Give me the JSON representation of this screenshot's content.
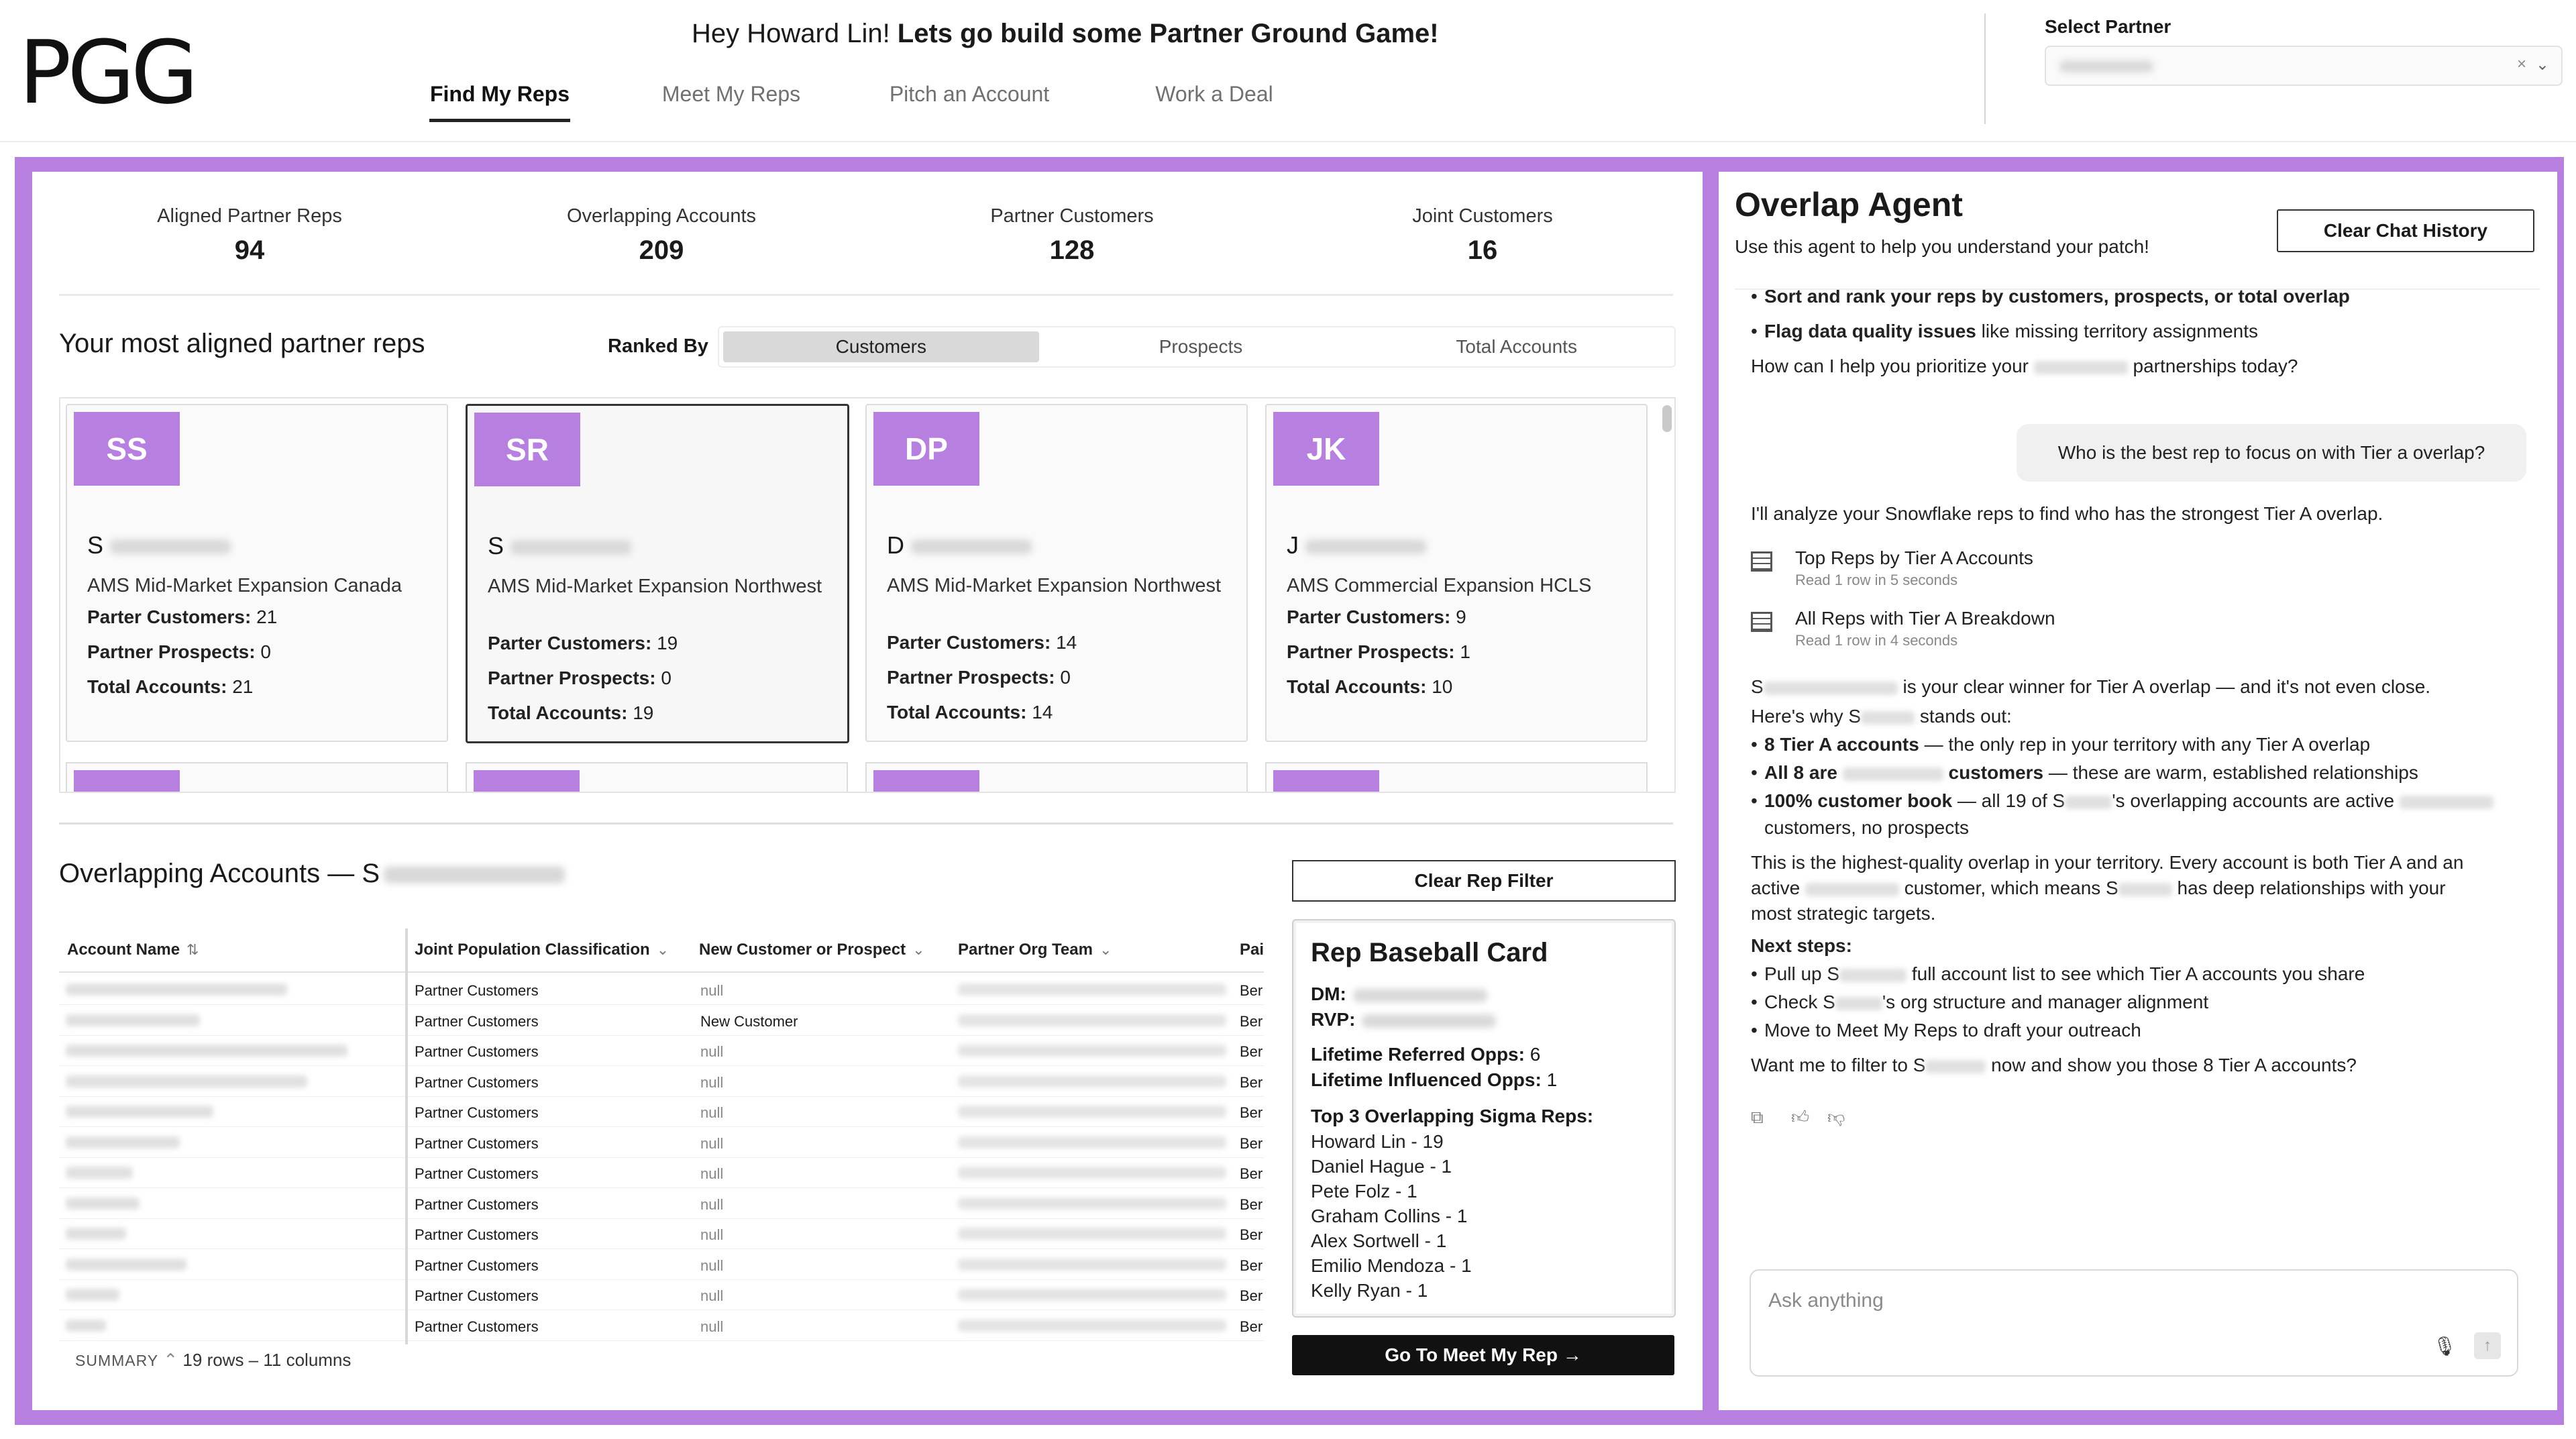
{
  "header": {
    "logo": "PGG",
    "greeting_prefix": "Hey Howard Lin! ",
    "greeting_bold": "Lets go build some Partner Ground Game!",
    "tabs": [
      {
        "label": "Find My Reps",
        "active": true
      },
      {
        "label": "Meet My Reps",
        "active": false
      },
      {
        "label": "Pitch an Account",
        "active": false
      },
      {
        "label": "Work a Deal",
        "active": false
      }
    ],
    "select_partner_label": "Select Partner",
    "clear_icon": "×",
    "chevron_icon": "⌄"
  },
  "stats": [
    {
      "label": "Aligned Partner Reps",
      "value": "94"
    },
    {
      "label": "Overlapping Accounts",
      "value": "209"
    },
    {
      "label": "Partner Customers",
      "value": "128"
    },
    {
      "label": "Joint Customers",
      "value": "16"
    }
  ],
  "reps_section": {
    "heading": "Your most aligned partner reps",
    "ranked_by_label": "Ranked By",
    "ranked_options": [
      "Customers",
      "Prospects",
      "Total Accounts"
    ],
    "active_option": "Customers"
  },
  "rep_cards": [
    {
      "initials": "SS",
      "name_initial": "S",
      "team": "AMS Mid-Market Expansion Canada",
      "customers_label": "Parter Customers:",
      "customers": "21",
      "prospects_label": "Partner Prospects:",
      "prospects": "0",
      "total_label": "Total Accounts:",
      "total": "21"
    },
    {
      "initials": "SR",
      "name_initial": "S",
      "team": "AMS Mid-Market Expansion Northwest",
      "customers_label": "Parter Customers:",
      "customers": "19",
      "prospects_label": "Partner Prospects:",
      "prospects": "0",
      "total_label": "Total Accounts:",
      "total": "19"
    },
    {
      "initials": "DP",
      "name_initial": "D",
      "team": "AMS Mid-Market Expansion Northwest",
      "customers_label": "Parter Customers:",
      "customers": "14",
      "prospects_label": "Partner Prospects:",
      "prospects": "0",
      "total_label": "Total Accounts:",
      "total": "14"
    },
    {
      "initials": "JK",
      "name_initial": "J",
      "team": "AMS Commercial Expansion HCLS",
      "customers_label": "Parter Customers:",
      "customers": "9",
      "prospects_label": "Partner Prospects:",
      "prospects": "1",
      "total_label": "Total Accounts:",
      "total": "10"
    }
  ],
  "overlap": {
    "title_prefix": "Overlapping Accounts — S",
    "clear_filter": "Clear Rep Filter",
    "columns": [
      "Account Name",
      "Joint Population Classification",
      "New Customer or Prospect",
      "Partner Org Team",
      "Pai"
    ],
    "sort_icon": "⇅",
    "rows": [
      {
        "classification": "Partner Customers",
        "new_or_prospect": "null",
        "team_prefix": "Ber"
      },
      {
        "classification": "Partner Customers",
        "new_or_prospect": "New Customer",
        "team_prefix": "Ber"
      },
      {
        "classification": "Partner Customers",
        "new_or_prospect": "null",
        "team_prefix": "Ber"
      },
      {
        "classification": "Partner Customers",
        "new_or_prospect": "null",
        "team_prefix": "Ber"
      },
      {
        "classification": "Partner Customers",
        "new_or_prospect": "null",
        "team_prefix": "Ber"
      },
      {
        "classification": "Partner Customers",
        "new_or_prospect": "null",
        "team_prefix": "Ber"
      },
      {
        "classification": "Partner Customers",
        "new_or_prospect": "null",
        "team_prefix": "Ber"
      },
      {
        "classification": "Partner Customers",
        "new_or_prospect": "null",
        "team_prefix": "Ber"
      },
      {
        "classification": "Partner Customers",
        "new_or_prospect": "null",
        "team_prefix": "Ber"
      },
      {
        "classification": "Partner Customers",
        "new_or_prospect": "null",
        "team_prefix": "Ber"
      },
      {
        "classification": "Partner Customers",
        "new_or_prospect": "null",
        "team_prefix": "Ber"
      },
      {
        "classification": "Partner Customers",
        "new_or_prospect": "null",
        "team_prefix": "Ber"
      }
    ],
    "summary_label": "SUMMARY",
    "summary_text": "19 rows – 11 columns"
  },
  "baseball_card": {
    "title": "Rep Baseball Card",
    "dm_label": "DM:",
    "rvp_label": "RVP:",
    "referred_label": "Lifetime Referred Opps:",
    "referred_value": "6",
    "influenced_label": "Lifetime Influenced Opps:",
    "influenced_value": "1",
    "top3_label": "Top 3 Overlapping Sigma Reps:",
    "reps": [
      "Howard Lin - 19",
      "Daniel Hague - 1",
      "Pete Folz - 1",
      "Graham Collins - 1",
      "Alex Sortwell - 1",
      "Emilio Mendoza - 1",
      "Kelly Ryan - 1"
    ],
    "go_button": "Go To Meet My Rep →"
  },
  "agent": {
    "title": "Overlap Agent",
    "subtitle": "Use this agent to help you understand your patch!",
    "clear_chat": "Clear Chat History",
    "partial_line": "Sort and rank your reps by customers, prospects, or total overlap",
    "bullet_flag_bold": "Flag data quality issues",
    "bullet_flag_rest": " like missing territory assignments",
    "prioritize_a": "How can I help you prioritize your ",
    "prioritize_b": " partnerships today?",
    "user_message": "Who is the best rep to focus on with Tier a overlap?",
    "analyze_line": "I'll analyze your Snowflake reps to find who has the strongest Tier A overlap.",
    "tools": [
      {
        "title": "Top Reps by Tier A Accounts",
        "sub": "Read 1 row in 5 seconds"
      },
      {
        "title": "All Reps with Tier A Breakdown",
        "sub": "Read 1 row in 4 seconds"
      }
    ],
    "winner_a": "S",
    "winner_b": " is your clear winner for Tier A overlap — and it's not even close.",
    "why_a": "Here's why S",
    "why_b": " stands out:",
    "b1_bold": "8 Tier A accounts",
    "b1_rest": " — the only rep in your territory with any Tier A overlap",
    "b2_bold_a": "All 8 are ",
    "b2_bold_b": " customers",
    "b2_rest": " — these are warm, established relationships",
    "b3_bold": "100% customer book",
    "b3_rest_a": " — all 19 of S",
    "b3_rest_b": "'s overlapping accounts are active",
    "b3_cont": "customers, no prospects",
    "para1": "This is the highest-quality overlap in your territory. Every account is both Tier A and an",
    "para2_a": "active ",
    "para2_b": " customer, which means S",
    "para2_c": " has deep relationships with your",
    "para3": "most strategic targets.",
    "next_steps": "Next steps:",
    "ns1_a": "Pull up S",
    "ns1_b": " full account list to see which Tier A accounts you share",
    "ns2_a": "Check S",
    "ns2_b": "'s org structure and manager alignment",
    "ns3": "Move to Meet My Reps to draft your outreach",
    "want_a": "Want me to filter to S",
    "want_b": " now and show you those 8 Tier A accounts?",
    "ask_placeholder": "Ask anything",
    "mic_icon": "🎙",
    "send_icon": "↑"
  }
}
